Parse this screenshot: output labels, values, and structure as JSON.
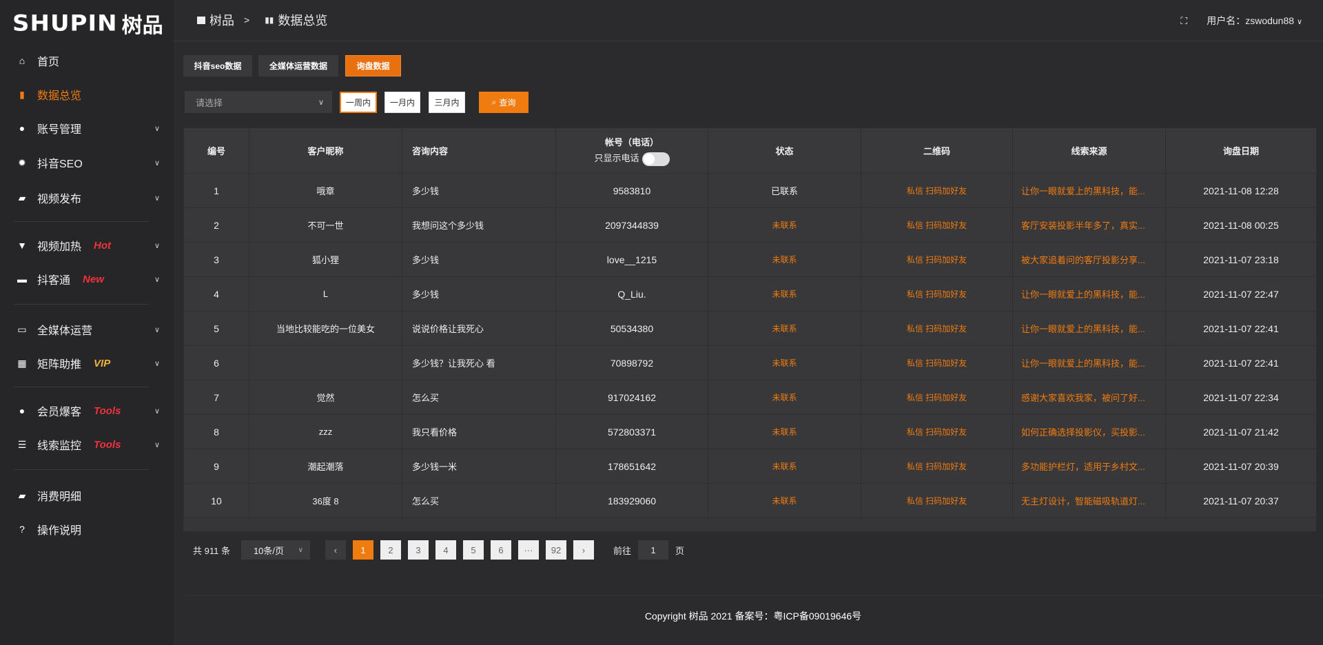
{
  "logo": {
    "en": "SHUPIN",
    "cn": "树品"
  },
  "sidebar": {
    "items": [
      {
        "label": "首页",
        "icon": "home-icon",
        "badge": "",
        "chev": false,
        "active": false
      },
      {
        "label": "数据总览",
        "icon": "bar-chart-icon",
        "badge": "",
        "chev": false,
        "active": true
      },
      {
        "label": "账号管理",
        "icon": "user-icon",
        "badge": "",
        "chev": true
      },
      {
        "label": "抖音SEO",
        "icon": "gear-icon",
        "badge": "",
        "chev": true
      },
      {
        "label": "视频发布",
        "icon": "camera-icon",
        "badge": "",
        "chev": true
      },
      {
        "label": "视频加热",
        "icon": "flame-sign-icon",
        "badge": "Hot",
        "chev": true
      },
      {
        "label": "抖客通",
        "icon": "chat-icon",
        "badge": "New",
        "chev": true
      },
      {
        "label": "全媒体运营",
        "icon": "monitor-icon",
        "badge": "",
        "chev": true
      },
      {
        "label": "矩阵助推",
        "icon": "grid-icon",
        "badge": "VIP",
        "chev": true
      },
      {
        "label": "会员爆客",
        "icon": "member-icon",
        "badge": "Tools",
        "chev": true
      },
      {
        "label": "线索监控",
        "icon": "sliders-icon",
        "badge": "Tools",
        "chev": true
      },
      {
        "label": "消费明细",
        "icon": "wallet-icon",
        "badge": "",
        "chev": false
      },
      {
        "label": "操作说明",
        "icon": "help-icon",
        "badge": "",
        "chev": false
      }
    ]
  },
  "header": {
    "crumb_root": "树品",
    "crumb_sep": ">",
    "crumb_current": "数据总览",
    "user_label": "用户名：zswodun88"
  },
  "tabs": [
    "抖音seo数据",
    "全媒体运营数据",
    "询盘数据"
  ],
  "filter": {
    "select_placeholder": "请选择",
    "ranges": [
      "一周内",
      "一月内",
      "三月内"
    ],
    "query": "查询"
  },
  "table": {
    "headers": [
      "编号",
      "客户昵称",
      "咨询内容",
      "帐号（电话）",
      "状态",
      "二维码",
      "线索来源",
      "询盘日期"
    ],
    "phone_toggle_label": "只显示电话",
    "rows": [
      [
        "1",
        "哦章",
        "多少钱",
        "9583810",
        "已联系",
        "私信 扫码加好友",
        "让你一眼就爱上的黑科技，能...",
        "2021-11-08 12:28"
      ],
      [
        "2",
        "不可一世",
        "我想问这个多少钱",
        "2097344839",
        "未联系",
        "私信 扫码加好友",
        "客厅安装投影半年多了，真实...",
        "2021-11-08 00:25"
      ],
      [
        "3",
        "狐小狸",
        "多少钱",
        "love__1215",
        "未联系",
        "私信 扫码加好友",
        "被大家追着问的客厅投影分享...",
        "2021-11-07 23:18"
      ],
      [
        "4",
        "L",
        "多少钱",
        "Q_Liu.",
        "未联系",
        "私信 扫码加好友",
        "让你一眼就爱上的黑科技，能...",
        "2021-11-07 22:47"
      ],
      [
        "5",
        "当地比较能吃的一位美女",
        "说说价格让我死心",
        "50534380",
        "未联系",
        "私信 扫码加好友",
        "让你一眼就爱上的黑科技，能...",
        "2021-11-07 22:41"
      ],
      [
        "6",
        "",
        "多少钱？让我死心 看",
        "70898792",
        "未联系",
        "私信 扫码加好友",
        "让你一眼就爱上的黑科技，能...",
        "2021-11-07 22:41"
      ],
      [
        "7",
        "觉然",
        "怎么买",
        "917024162",
        "未联系",
        "私信 扫码加好友",
        "感谢大家喜欢我家，被问了好...",
        "2021-11-07 22:34"
      ],
      [
        "8",
        "zzz",
        "我只看价格",
        "572803371",
        "未联系",
        "私信 扫码加好友",
        "如何正确选择投影仪，买投影...",
        "2021-11-07 21:42"
      ],
      [
        "9",
        "潮起潮落",
        "多少钱一米",
        "178651642",
        "未联系",
        "私信 扫码加好友",
        "多功能护栏灯，适用于乡村文...",
        "2021-11-07 20:39"
      ],
      [
        "10",
        "36度 8",
        "怎么买",
        "183929060",
        "未联系",
        "私信 扫码加好友",
        "无主灯设计，智能磁吸轨道灯...",
        "2021-11-07 20:37"
      ]
    ]
  },
  "pagination": {
    "total": "共 911 条",
    "page_size": "10条/页",
    "pages": [
      "1",
      "2",
      "3",
      "4",
      "5",
      "6",
      "···",
      "92"
    ],
    "current": "1",
    "goto_label": "前往",
    "goto_value": "1",
    "page_unit": "页"
  },
  "footer": "Copyright 树品 2021 备案号：粤ICP备09019646号",
  "colors": {
    "accent": "#f07b0f",
    "badge_red": "#f0323c",
    "badge_vip": "#f0b43c"
  }
}
